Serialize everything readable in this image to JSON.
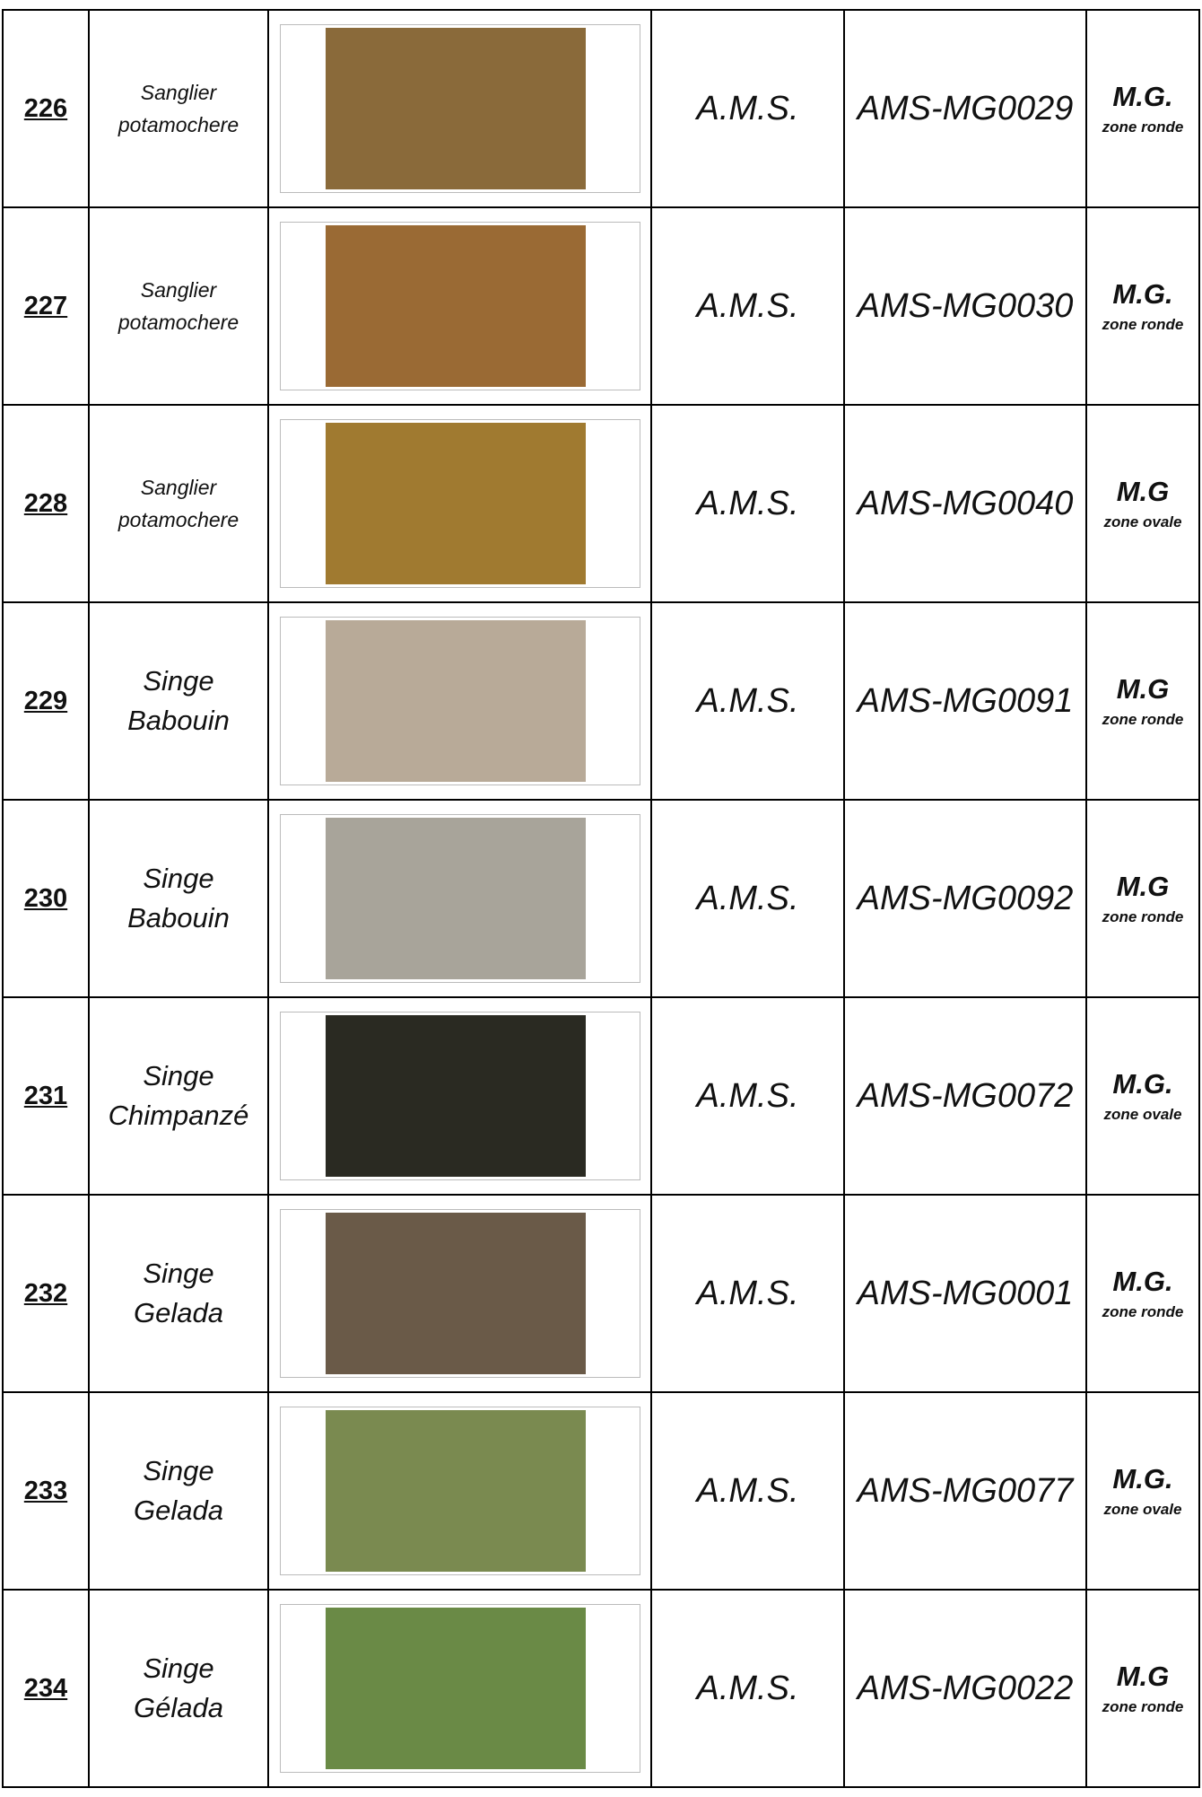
{
  "table": {
    "rows": [
      {
        "number": "226",
        "name": [
          "Sanglier",
          "potamochere"
        ],
        "supplier": "A.M.S.",
        "reference": "AMS-MG0029",
        "format": "M.G.",
        "zone": "zone ronde"
      },
      {
        "number": "227",
        "name": [
          "Sanglier",
          "potamochere"
        ],
        "supplier": "A.M.S.",
        "reference": "AMS-MG0030",
        "format": "M.G.",
        "zone": "zone ronde"
      },
      {
        "number": "228",
        "name": [
          "Sanglier",
          "potamochere"
        ],
        "supplier": "A.M.S.",
        "reference": "AMS-MG0040",
        "format": "M.G",
        "zone": "zone ovale"
      },
      {
        "number": "229",
        "name": [
          "Singe",
          "Babouin"
        ],
        "supplier": "A.M.S.",
        "reference": "AMS-MG0091",
        "format": "M.G",
        "zone": "zone ronde"
      },
      {
        "number": "230",
        "name": [
          "Singe",
          "Babouin"
        ],
        "supplier": "A.M.S.",
        "reference": "AMS-MG0092",
        "format": "M.G",
        "zone": "zone ronde"
      },
      {
        "number": "231",
        "name": [
          "Singe",
          "Chimpanzé"
        ],
        "supplier": "A.M.S.",
        "reference": "AMS-MG0072",
        "format": "M.G.",
        "zone": "zone ovale"
      },
      {
        "number": "232",
        "name": [
          "Singe",
          "Gelada"
        ],
        "supplier": "A.M.S.",
        "reference": "AMS-MG0001",
        "format": "M.G.",
        "zone": "zone ronde"
      },
      {
        "number": "233",
        "name": [
          "Singe",
          "Gelada"
        ],
        "supplier": "A.M.S.",
        "reference": "AMS-MG0077",
        "format": "M.G.",
        "zone": "zone ovale"
      },
      {
        "number": "234",
        "name": [
          "Singe",
          "Gélada"
        ],
        "supplier": "A.M.S.",
        "reference": "AMS-MG0022",
        "format": "M.G",
        "zone": "zone ronde"
      }
    ]
  }
}
